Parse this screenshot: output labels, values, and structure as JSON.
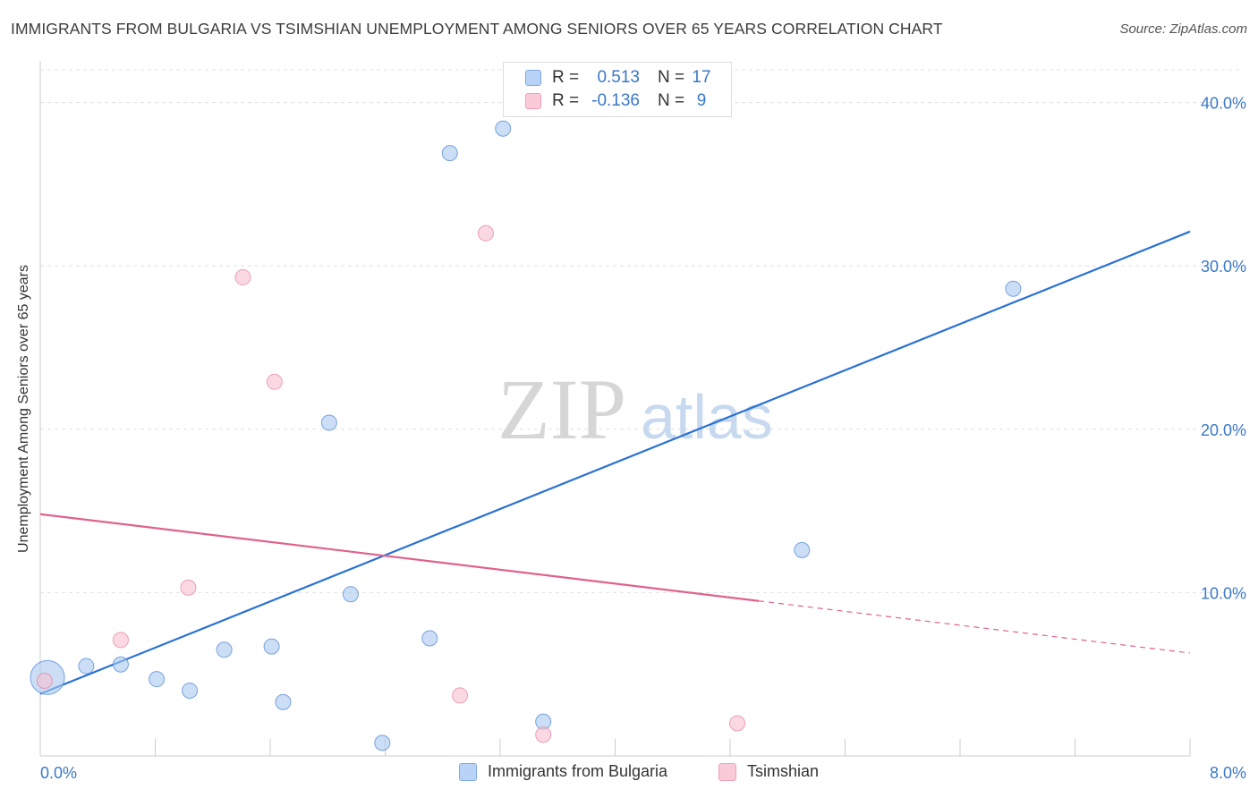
{
  "title": "IMMIGRANTS FROM BULGARIA VS TSIMSHIAN UNEMPLOYMENT AMONG SENIORS OVER 65 YEARS CORRELATION CHART",
  "source": "Source: ZipAtlas.com",
  "watermark": {
    "zip": "ZIP",
    "atlas": "atlas"
  },
  "legend_top": [
    {
      "r_label": "R =",
      "r_value": "0.513",
      "n_label": "N =",
      "n_value": "17"
    },
    {
      "r_label": "R =",
      "r_value": "-0.136",
      "n_label": "N =",
      "n_value": "9"
    }
  ],
  "legend_bottom": [
    "Immigrants from Bulgaria",
    "Tsimshian"
  ],
  "chart_data": {
    "type": "scatter",
    "title": "IMMIGRANTS FROM BULGARIA VS TSIMSHIAN UNEMPLOYMENT AMONG SENIORS OVER 65 YEARS CORRELATION CHART",
    "xlabel": "",
    "ylabel": "Unemployment Among Seniors over 65 years",
    "xlim": [
      0,
      8
    ],
    "ylim": [
      0,
      42
    ],
    "x_tick_labels": [
      "0.0%",
      "8.0%"
    ],
    "y_ticks": [
      10,
      20,
      30,
      40
    ],
    "y_tick_labels": [
      "10.0%",
      "20.0%",
      "30.0%",
      "40.0%"
    ],
    "grid": true,
    "legend_position": "bottom",
    "series": [
      {
        "name": "Immigrants from Bulgaria",
        "color": "#a8c8f0",
        "edge_color": "#5b8fd6",
        "line_color": "#2a72d4",
        "r": 0.513,
        "n": 17,
        "points": [
          {
            "x": 0.05,
            "y": 4.8,
            "size": "large"
          },
          {
            "x": 0.32,
            "y": 5.5
          },
          {
            "x": 0.56,
            "y": 5.6
          },
          {
            "x": 0.81,
            "y": 4.7
          },
          {
            "x": 1.04,
            "y": 4.0
          },
          {
            "x": 1.28,
            "y": 6.5
          },
          {
            "x": 1.61,
            "y": 6.7
          },
          {
            "x": 1.69,
            "y": 3.3
          },
          {
            "x": 2.01,
            "y": 20.4
          },
          {
            "x": 2.16,
            "y": 9.9
          },
          {
            "x": 2.38,
            "y": 0.8
          },
          {
            "x": 2.71,
            "y": 7.2
          },
          {
            "x": 2.85,
            "y": 36.9
          },
          {
            "x": 3.22,
            "y": 38.4
          },
          {
            "x": 3.5,
            "y": 2.1
          },
          {
            "x": 5.3,
            "y": 12.6
          },
          {
            "x": 6.77,
            "y": 28.6
          }
        ],
        "trend": {
          "x0": 0,
          "y0": 3.8,
          "x1": 8,
          "y1": 32.1
        }
      },
      {
        "name": "Tsimshian",
        "color": "#f8c0d0",
        "edge_color": "#e88aa8",
        "line_color": "#e0628c",
        "r": -0.136,
        "n": 9,
        "points": [
          {
            "x": 0.03,
            "y": 4.6
          },
          {
            "x": 0.56,
            "y": 7.1
          },
          {
            "x": 1.03,
            "y": 10.3
          },
          {
            "x": 1.41,
            "y": 29.3
          },
          {
            "x": 1.63,
            "y": 22.9
          },
          {
            "x": 2.92,
            "y": 3.7
          },
          {
            "x": 3.1,
            "y": 32.0
          },
          {
            "x": 3.5,
            "y": 1.3
          },
          {
            "x": 4.85,
            "y": 2.0
          }
        ],
        "trend": {
          "x0": 0,
          "y0": 14.8,
          "x1": 8,
          "y1": 6.3,
          "solid_until_x": 5.0
        }
      }
    ]
  }
}
